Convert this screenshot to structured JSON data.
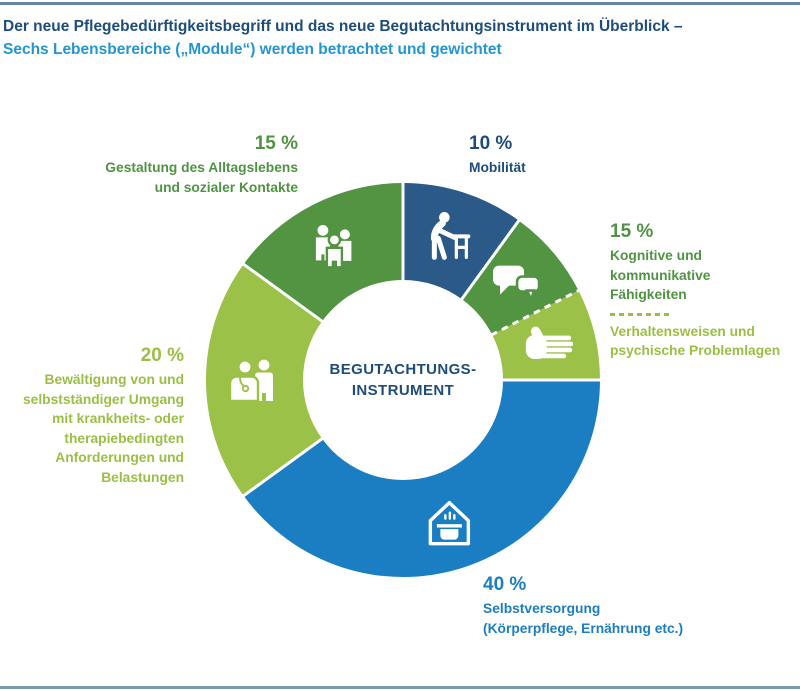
{
  "header": {
    "title_line1": "Der neue Pflegebedürftigkeitsbegriff und das neue Begutachtungsinstrument im Überblick –",
    "title_line2": "Sechs Lebensbereiche („Module“) werden betrachtet und gewichtet"
  },
  "colors": {
    "title_navy": "#1e4d7b",
    "subtitle_blue": "#2296d5",
    "segment_navy": "#2b5a88",
    "segment_blue": "#1b7ec3",
    "segment_green_medium": "#529442",
    "segment_green_light": "#9cc148",
    "text_green_medium": "#4f9343",
    "text_green_light": "#9bbf44",
    "separator_white": "#ffffff",
    "rule_top": "#64879f",
    "rule_bottom": "#7d97ab"
  },
  "callouts": {
    "daily_life": {
      "pct": "15 %",
      "text": "Gestaltung des Alltagslebens\nund sozialer Kontakte"
    },
    "mobility": {
      "pct": "10 %",
      "text": "Mobilität"
    },
    "cognitive": {
      "pct": "15 %",
      "text": "Kognitive und kommunikative\nFähigkeiten",
      "divider_style": "dashed",
      "text2": "Verhaltensweisen und\npsychische Problemlagen"
    },
    "coping": {
      "pct": "20 %",
      "text": "Bewältigung von und\nselbstständiger Umgang\nmit krankheits- oder\ntherapiebedingten\nAnforderungen und\nBelastungen"
    },
    "self_care": {
      "pct": "40 %",
      "text": "Selbstversorgung\n(Körperpflege, Ernährung etc.)"
    }
  },
  "chart_data": {
    "type": "pie",
    "variant": "donut",
    "center_label": "BEGUTACHTUNGS-\nINSTRUMENT",
    "start_angle_deg": 0,
    "direction": "clockwise",
    "outer_radius": 197,
    "inner_radius": 100,
    "icon_radius": 150,
    "segments": [
      {
        "key": "mobilitaet",
        "label": "Mobilität",
        "weight_pct": 10,
        "value": 10,
        "color": "#2b5a88",
        "icon": "person-with-walker-icon"
      },
      {
        "key": "kognitive-faehigkeiten",
        "label": "Kognitive und kommunikative Fähigkeiten",
        "group_weight_pct": 15,
        "value": 7.5,
        "color": "#529442",
        "icon": "speech-bubbles-icon"
      },
      {
        "key": "verhaltensweisen",
        "label": "Verhaltensweisen und psychische Problemlagen",
        "group_weight_pct": 15,
        "value": 7.5,
        "color": "#9cc148",
        "icon": "hand-icon",
        "dashed_separator_before": true
      },
      {
        "key": "selbstversorgung",
        "label": "Selbstversorgung (Körperpflege, Ernährung etc.)",
        "weight_pct": 40,
        "value": 40,
        "color": "#1b7ec3",
        "icon": "house-cooking-icon"
      },
      {
        "key": "bewaeltigung",
        "label": "Bewältigung von und selbstständiger Umgang mit krankheits- oder therapiebedingten Anforderungen und Belastungen",
        "weight_pct": 20,
        "value": 20,
        "color": "#9cc148",
        "icon": "doctor-patient-icon"
      },
      {
        "key": "alltagsleben",
        "label": "Gestaltung des Alltagslebens und sozialer Kontakte",
        "weight_pct": 15,
        "value": 15,
        "color": "#529442",
        "icon": "people-group-icon"
      }
    ]
  }
}
